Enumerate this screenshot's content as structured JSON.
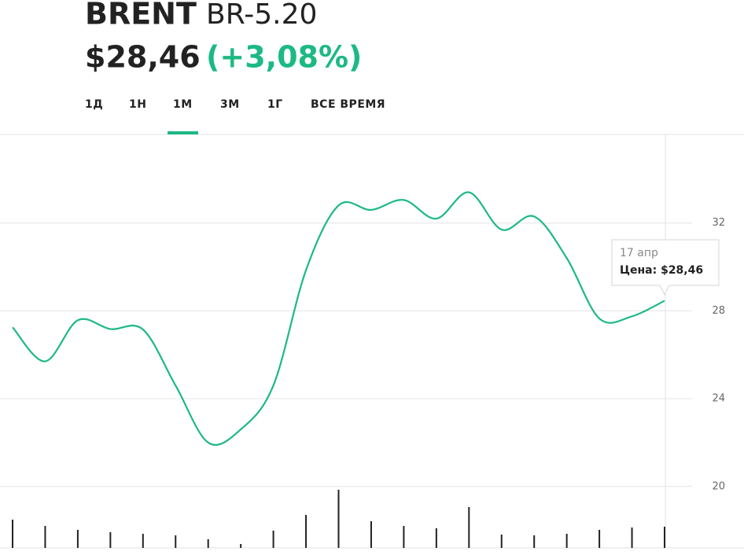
{
  "header": {
    "name": "BRENT",
    "ticker": "BR-5.20",
    "price": "$28,46",
    "change": "(+3,08%)"
  },
  "tabs": {
    "items": [
      "1Д",
      "1Н",
      "1М",
      "3М",
      "1Г",
      "ВСЕ ВРЕМЯ"
    ],
    "active": 2
  },
  "chart_data": {
    "type": "line",
    "color": "#1db983",
    "categories": [
      null,
      null,
      null,
      null,
      null,
      null,
      null,
      null,
      null,
      null,
      null,
      null,
      null,
      null,
      null,
      null,
      null,
      null,
      null,
      null,
      "17 апр"
    ],
    "values": [
      27.25,
      25.7,
      27.57,
      27.17,
      27.15,
      24.6,
      22.0,
      22.6,
      24.6,
      29.85,
      32.8,
      32.6,
      33.05,
      32.2,
      33.4,
      31.7,
      32.3,
      30.4,
      27.65,
      27.75,
      28.46
    ],
    "volume": [
      36,
      28,
      23,
      20,
      18,
      16,
      11,
      5,
      22,
      42,
      74,
      34,
      28,
      25,
      52,
      17,
      16,
      18,
      23,
      26,
      27
    ],
    "ylim": [
      17.2,
      36
    ],
    "yticks": [
      20,
      24,
      28,
      32
    ],
    "grid": true,
    "tooltip": {
      "label": "Цена: $28,46"
    }
  }
}
